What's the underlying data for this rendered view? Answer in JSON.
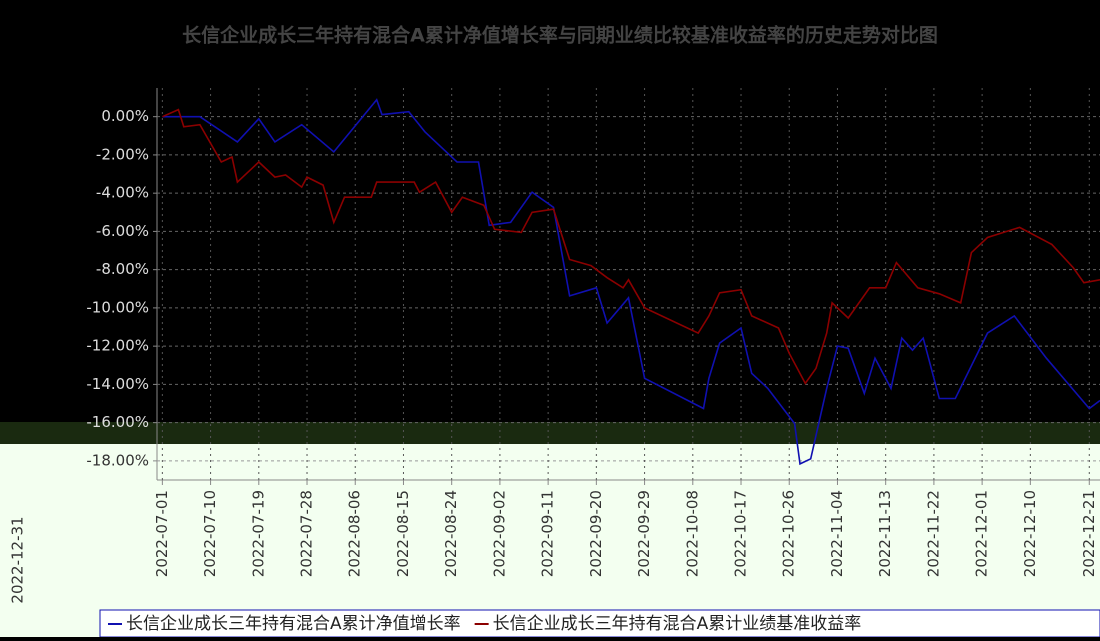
{
  "chart_data": {
    "type": "line",
    "title": "长信企业成长三年持有混合A累计净值增长率与同期业绩比较基准收益率的历史走势对比图",
    "side_label": "2022-12-31",
    "xlim": [
      "2022-06-30",
      "2022-12-23"
    ],
    "xticks": [
      "2022-07-01",
      "2022-07-10",
      "2022-07-19",
      "2022-07-28",
      "2022-08-06",
      "2022-08-15",
      "2022-08-24",
      "2022-09-02",
      "2022-09-11",
      "2022-09-20",
      "2022-09-29",
      "2022-10-08",
      "2022-10-17",
      "2022-10-26",
      "2022-11-04",
      "2022-11-13",
      "2022-11-22",
      "2022-12-01",
      "2022-12-10",
      "2022-12-21"
    ],
    "ylim": [
      -19,
      1.5
    ],
    "yticks": [
      {
        "value": 0,
        "label": "0.00%"
      },
      {
        "value": -2,
        "label": "-2.00%"
      },
      {
        "value": -4,
        "label": "-4.00%"
      },
      {
        "value": -6,
        "label": "-6.00%"
      },
      {
        "value": -8,
        "label": "-8.00%"
      },
      {
        "value": -10,
        "label": "-10.00%"
      },
      {
        "value": -12,
        "label": "-12.00%"
      },
      {
        "value": -14,
        "label": "-14.00%"
      },
      {
        "value": -16,
        "label": "-16.00%"
      },
      {
        "value": -18,
        "label": "-18.00%"
      }
    ],
    "grid": true,
    "series": [
      {
        "name": "长信企业成长三年持有混合A累计净值增长率",
        "color": "#1010b0",
        "x": [
          "2022-07-01",
          "2022-07-08",
          "2022-07-15",
          "2022-07-19",
          "2022-07-22",
          "2022-07-27",
          "2022-08-02",
          "2022-08-10",
          "2022-08-11",
          "2022-08-16",
          "2022-08-19",
          "2022-08-25",
          "2022-08-29",
          "2022-08-31",
          "2022-09-04",
          "2022-09-08",
          "2022-09-12",
          "2022-09-15",
          "2022-09-20",
          "2022-09-22",
          "2022-09-26",
          "2022-09-29",
          "2022-10-10",
          "2022-10-11",
          "2022-10-13",
          "2022-10-17",
          "2022-10-19",
          "2022-10-22",
          "2022-10-27",
          "2022-10-28",
          "2022-10-30",
          "2022-11-02",
          "2022-11-04",
          "2022-11-06",
          "2022-11-09",
          "2022-11-11",
          "2022-11-14",
          "2022-11-16",
          "2022-11-18",
          "2022-11-20",
          "2022-11-23",
          "2022-11-26",
          "2022-12-02",
          "2022-12-07",
          "2022-12-13",
          "2022-12-21",
          "2022-12-23"
        ],
        "values": [
          0,
          0,
          -1.32,
          -0.11,
          -1.32,
          -0.42,
          -1.84,
          0.89,
          0.11,
          0.26,
          -0.79,
          -2.37,
          -2.37,
          -5.68,
          -5.53,
          -3.95,
          -4.74,
          -9.37,
          -8.95,
          -10.79,
          -9.47,
          -13.68,
          -15.26,
          -13.68,
          -11.84,
          -11.05,
          -13.42,
          -14.21,
          -16.05,
          -18.16,
          -17.89,
          -14.21,
          -12,
          -12.11,
          -14.47,
          -12.63,
          -14.21,
          -11.58,
          -12.21,
          -11.58,
          -14.74,
          -14.74,
          -11.32,
          -10.42,
          -12.63,
          -15.26,
          -14.84
        ]
      },
      {
        "name": "长信企业成长三年持有混合A累计业绩基准收益率",
        "color": "#8b0000",
        "x": [
          "2022-07-01",
          "2022-07-04",
          "2022-07-05",
          "2022-07-08",
          "2022-07-12",
          "2022-07-14",
          "2022-07-15",
          "2022-07-19",
          "2022-07-22",
          "2022-07-24",
          "2022-07-27",
          "2022-07-28",
          "2022-07-31",
          "2022-08-02",
          "2022-08-04",
          "2022-08-09",
          "2022-08-10",
          "2022-08-13",
          "2022-08-17",
          "2022-08-18",
          "2022-08-21",
          "2022-08-24",
          "2022-08-26",
          "2022-08-30",
          "2022-09-01",
          "2022-09-06",
          "2022-09-08",
          "2022-09-12",
          "2022-09-15",
          "2022-09-19",
          "2022-09-22",
          "2022-09-25",
          "2022-09-26",
          "2022-09-29",
          "2022-10-09",
          "2022-10-11",
          "2022-10-13",
          "2022-10-17",
          "2022-10-19",
          "2022-10-24",
          "2022-10-26",
          "2022-10-29",
          "2022-10-31",
          "2022-11-02",
          "2022-11-03",
          "2022-11-06",
          "2022-11-10",
          "2022-11-13",
          "2022-11-15",
          "2022-11-19",
          "2022-11-23",
          "2022-11-27",
          "2022-11-29",
          "2022-12-02",
          "2022-12-05",
          "2022-12-08",
          "2022-12-14",
          "2022-12-18",
          "2022-12-20",
          "2022-12-23"
        ],
        "values": [
          0,
          0.37,
          -0.53,
          -0.42,
          -2.37,
          -2.11,
          -3.42,
          -2.37,
          -3.16,
          -3.05,
          -3.68,
          -3.16,
          -3.58,
          -5.53,
          -4.21,
          -4.21,
          -3.42,
          -3.42,
          -3.42,
          -3.95,
          -3.42,
          -5,
          -4.21,
          -4.63,
          -5.89,
          -6.05,
          -5,
          -4.84,
          -7.47,
          -7.79,
          -8.42,
          -8.95,
          -8.53,
          -10,
          -11.32,
          -10.42,
          -9.21,
          -9.05,
          -10.42,
          -11.05,
          -12.37,
          -13.95,
          -13.16,
          -11.32,
          -9.74,
          -10.53,
          -8.95,
          -8.95,
          -7.63,
          -8.95,
          -9.26,
          -9.74,
          -7.11,
          -6.32,
          -6.05,
          -5.79,
          -6.68,
          -7.89,
          -8.68,
          -8.53
        ]
      }
    ]
  }
}
